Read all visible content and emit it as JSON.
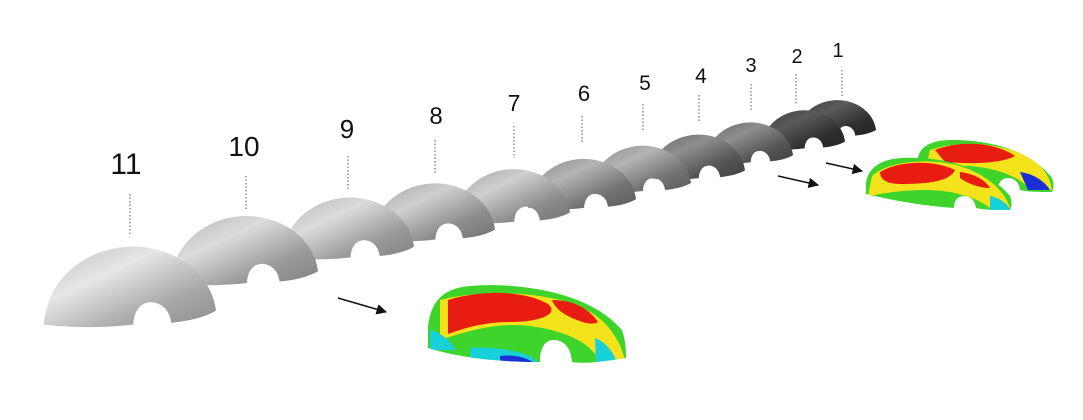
{
  "figure": {
    "shells": [
      {
        "label": "1"
      },
      {
        "label": "2"
      },
      {
        "label": "3"
      },
      {
        "label": "4"
      },
      {
        "label": "5"
      },
      {
        "label": "6"
      },
      {
        "label": "7"
      },
      {
        "label": "8"
      },
      {
        "label": "9"
      },
      {
        "label": "10"
      },
      {
        "label": "11"
      }
    ],
    "colors": {
      "shell_light": "#c9c9c9",
      "shell_dark": "#3a3a3a",
      "contour_red": "#e81c10",
      "contour_yellow": "#f4e21a",
      "contour_green": "#3ed42c",
      "contour_cyan": "#18d0d8",
      "contour_blue": "#1a2fd6"
    }
  }
}
